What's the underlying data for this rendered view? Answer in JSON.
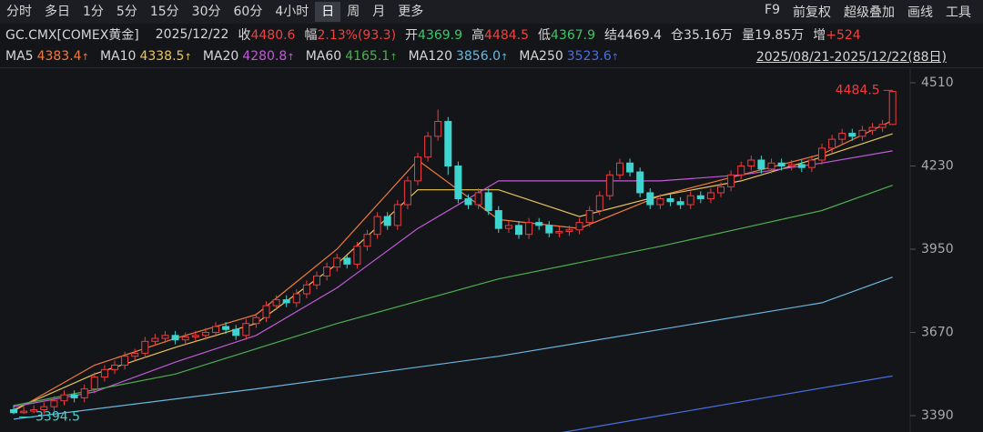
{
  "toolbar": {
    "tabs": [
      "分时",
      "多日",
      "1分",
      "5分",
      "15分",
      "30分",
      "60分",
      "4小时",
      "日",
      "周",
      "月",
      "更多"
    ],
    "active": 8,
    "tools": [
      "F9",
      "前复权",
      "超级叠加",
      "画线",
      "工具"
    ]
  },
  "quote": {
    "symbol": "GC.CMX[COMEX黄金]",
    "date": "2025/12/22",
    "fields": [
      {
        "label": "收",
        "value": "4480.6",
        "color": "#f0413f"
      },
      {
        "label": "幅",
        "value": "2.13%(93.3)",
        "color": "#f0413f"
      },
      {
        "label": "开",
        "value": "4369.9",
        "color": "#3fc46a"
      },
      {
        "label": "高",
        "value": "4484.5",
        "color": "#f0413f"
      },
      {
        "label": "低",
        "value": "4367.9",
        "color": "#3fc46a"
      },
      {
        "label": "结",
        "value": "4469.4",
        "color": "#d6d6d6"
      },
      {
        "label": "仓",
        "value": "35.16万",
        "color": "#d6d6d6"
      },
      {
        "label": "量",
        "value": "19.85万",
        "color": "#d6d6d6"
      },
      {
        "label": "增",
        "value": "+524",
        "color": "#f0413f"
      }
    ]
  },
  "range": "2025/08/21-2025/12/22(88日)",
  "chart_data": {
    "type": "candlestick",
    "up_color": "#ee3b3f",
    "down_color": "#3fd4cf",
    "open": [
      3410,
      3400,
      3405,
      3410,
      3420,
      3440,
      3460,
      3450,
      3480,
      3520,
      3545,
      3560,
      3590,
      3600,
      3640,
      3650,
      3660,
      3645,
      3655,
      3660,
      3670,
      3690,
      3680,
      3660,
      3700,
      3720,
      3760,
      3780,
      3770,
      3800,
      3830,
      3860,
      3890,
      3920,
      3900,
      3960,
      4000,
      4060,
      4030,
      4100,
      4180,
      4260,
      4330,
      4380,
      4230,
      4120,
      4100,
      4140,
      4080,
      4020,
      4030,
      4000,
      4040,
      4030,
      4005,
      4010,
      4015,
      4040,
      4080,
      4130,
      4200,
      4240,
      4210,
      4140,
      4100,
      4120,
      4110,
      4100,
      4130,
      4120,
      4140,
      4160,
      4200,
      4230,
      4250,
      4220,
      4240,
      4230,
      4235,
      4225,
      4250,
      4290,
      4320,
      4340,
      4330,
      4350,
      4360,
      4369.9
    ],
    "high": [
      3425,
      3420,
      3425,
      3435,
      3455,
      3475,
      3475,
      3495,
      3535,
      3560,
      3575,
      3605,
      3615,
      3655,
      3665,
      3675,
      3675,
      3670,
      3675,
      3685,
      3705,
      3705,
      3695,
      3715,
      3735,
      3775,
      3795,
      3795,
      3815,
      3845,
      3875,
      3905,
      3935,
      3935,
      3975,
      4015,
      4075,
      4075,
      4115,
      4195,
      4275,
      4345,
      4420,
      4395,
      4245,
      4135,
      4155,
      4155,
      4095,
      4045,
      4045,
      4055,
      4055,
      4045,
      4025,
      4030,
      4055,
      4095,
      4145,
      4215,
      4255,
      4255,
      4225,
      4155,
      4135,
      4135,
      4125,
      4145,
      4145,
      4155,
      4175,
      4215,
      4245,
      4265,
      4265,
      4255,
      4255,
      4250,
      4250,
      4265,
      4305,
      4335,
      4355,
      4355,
      4365,
      4375,
      4385,
      4484.5
    ],
    "low": [
      3394.5,
      3396,
      3398,
      3395,
      3405,
      3425,
      3435,
      3435,
      3465,
      3505,
      3530,
      3545,
      3575,
      3585,
      3625,
      3635,
      3630,
      3630,
      3640,
      3645,
      3655,
      3665,
      3645,
      3645,
      3685,
      3705,
      3745,
      3755,
      3755,
      3785,
      3815,
      3845,
      3875,
      3885,
      3885,
      3945,
      3985,
      4015,
      4015,
      4085,
      4165,
      4245,
      4315,
      4200,
      4105,
      4085,
      4085,
      4065,
      4005,
      4005,
      3985,
      3985,
      4015,
      3990,
      3990,
      3995,
      4000,
      4025,
      4065,
      4115,
      4185,
      4195,
      4125,
      4085,
      4085,
      4095,
      4085,
      4085,
      4105,
      4105,
      4125,
      4145,
      4185,
      4215,
      4205,
      4205,
      4215,
      4215,
      4210,
      4210,
      4235,
      4275,
      4305,
      4315,
      4315,
      4335,
      4345,
      4367.9
    ],
    "close": [
      3400,
      3405,
      3410,
      3420,
      3440,
      3460,
      3450,
      3480,
      3520,
      3545,
      3560,
      3590,
      3600,
      3640,
      3650,
      3660,
      3645,
      3655,
      3660,
      3670,
      3690,
      3680,
      3660,
      3700,
      3720,
      3760,
      3780,
      3770,
      3800,
      3830,
      3860,
      3890,
      3920,
      3900,
      3960,
      4000,
      4060,
      4030,
      4100,
      4180,
      4260,
      4330,
      4380,
      4230,
      4120,
      4100,
      4140,
      4080,
      4020,
      4030,
      4000,
      4040,
      4030,
      4005,
      4010,
      4015,
      4040,
      4080,
      4130,
      4200,
      4240,
      4210,
      4140,
      4100,
      4120,
      4110,
      4100,
      4130,
      4120,
      4140,
      4160,
      4200,
      4230,
      4250,
      4220,
      4240,
      4230,
      4235,
      4225,
      4250,
      4290,
      4320,
      4340,
      4330,
      4350,
      4360,
      4370,
      4480.6
    ],
    "series": [
      {
        "name": "MA5",
        "label": "4383.4",
        "color": "#f07b3c",
        "x": [
          0,
          8,
          16,
          24,
          32,
          40,
          48,
          56,
          64,
          72,
          80,
          87
        ],
        "values": [
          3405,
          3560,
          3650,
          3730,
          3950,
          4250,
          4050,
          4020,
          4130,
          4200,
          4270,
          4383.4
        ]
      },
      {
        "name": "MA10",
        "label": "4338.5",
        "color": "#e8c55a",
        "x": [
          0,
          8,
          16,
          24,
          32,
          40,
          48,
          56,
          64,
          72,
          80,
          87
        ],
        "values": [
          3410,
          3530,
          3620,
          3700,
          3900,
          4150,
          4150,
          4060,
          4130,
          4180,
          4260,
          4338.5
        ]
      },
      {
        "name": "MA20",
        "label": "4280.8",
        "color": "#c05ad6",
        "x": [
          0,
          8,
          16,
          24,
          32,
          40,
          48,
          56,
          64,
          72,
          80,
          87
        ],
        "values": [
          3420,
          3470,
          3570,
          3660,
          3820,
          4020,
          4180,
          4180,
          4180,
          4200,
          4240,
          4280.8
        ]
      },
      {
        "name": "MA60",
        "label": "4165.1",
        "color": "#4cae4f",
        "x": [
          0,
          16,
          32,
          48,
          64,
          80,
          87
        ],
        "values": [
          3424,
          3530,
          3700,
          3850,
          3960,
          4080,
          4165.1
        ]
      },
      {
        "name": "MA120",
        "label": "3856.0",
        "color": "#6ab7e0",
        "x": [
          0,
          24,
          48,
          64,
          80,
          87
        ],
        "values": [
          3378,
          3480,
          3590,
          3680,
          3770,
          3856
        ]
      },
      {
        "name": "MA250",
        "label": "3523.6",
        "color": "#4a6ee0",
        "x": [
          52,
          64,
          76,
          87
        ],
        "values": [
          3320,
          3390,
          3460,
          3523.6
        ]
      }
    ],
    "annotations": [
      {
        "text": "4484.5",
        "index": 87,
        "value": 4484.5
      },
      {
        "text": "3394.5",
        "index": 0,
        "value": 3394.5
      }
    ],
    "ylim": [
      3335,
      4556
    ],
    "yticks": [
      4510,
      4230,
      3950,
      3670,
      3390
    ],
    "grid": false
  }
}
